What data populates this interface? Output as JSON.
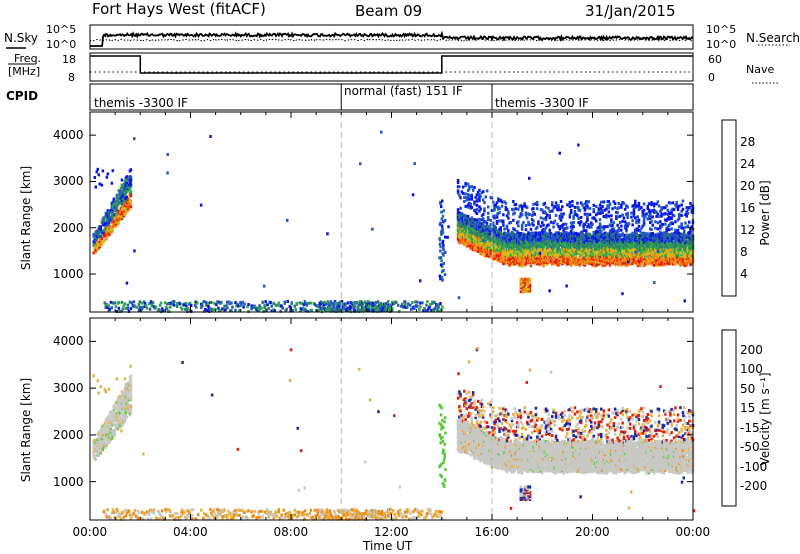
{
  "header": {
    "station": "Fort Hays West (fitACF)",
    "beam": "Beam 09",
    "date": "31/Jan/2015"
  },
  "noise_panel": {
    "left_label": "N.Sky",
    "right_label": "N.Search",
    "scale_top_left": "10^5",
    "scale_bottom_left": "10^0",
    "scale_top_right": "10^5",
    "scale_bottom_right": "10^0"
  },
  "freq_panel": {
    "label_line1": "Freq.",
    "label_line2": "[MHz]",
    "right_label": "Nave",
    "left_ticks": [
      "18",
      "8"
    ],
    "right_ticks": [
      "60",
      "0"
    ],
    "freq_segments": [
      {
        "t0": 0.0,
        "t1": 2.0,
        "level": "high"
      },
      {
        "t0": 2.0,
        "t1": 14.0,
        "level": "low"
      },
      {
        "t0": 14.0,
        "t1": 24.0,
        "level": "high"
      }
    ]
  },
  "cpid": {
    "label": "CPID",
    "segments": [
      {
        "t0": 0.0,
        "t1": 10.0,
        "text": "themis -3300 IF"
      },
      {
        "t0": 10.0,
        "t1": 16.0,
        "text": "normal (fast) 151 IF"
      },
      {
        "t0": 16.0,
        "t1": 24.0,
        "text": "themis -3300 IF"
      }
    ]
  },
  "chart_data": [
    {
      "type": "heatmap",
      "name": "power",
      "ylabel": "Slant Range [km]",
      "xlim": [
        0,
        24
      ],
      "ylim": [
        180,
        4500
      ],
      "yticks": [
        "1000",
        "2000",
        "3000",
        "4000"
      ],
      "colorbar": {
        "label": "Power [dB]",
        "tick_labels": [
          "4",
          "8",
          "12",
          "16",
          "20",
          "24",
          "28"
        ],
        "colors": [
          "#0a14e6",
          "#2155c8",
          "#2f7a72",
          "#2ea84a",
          "#c9c21a",
          "#f0a018",
          "#f46a12",
          "#e11d12"
        ]
      },
      "features": [
        {
          "t0": 0.1,
          "t1": 1.6,
          "r_base": 1450,
          "r_top": 2050,
          "slope": 900,
          "band": "strong"
        },
        {
          "t0": 14.6,
          "t1": 24.0,
          "r_base": 1300,
          "r_top": 2000,
          "band": "strong"
        },
        {
          "t0": 14.6,
          "t1": 24.0,
          "r_base": 2000,
          "r_top": 2700,
          "band": "weak"
        },
        {
          "t0": 0.5,
          "t1": 14.0,
          "r_base": 200,
          "r_top": 450,
          "band": "ground"
        },
        {
          "t0": 17.1,
          "t1": 17.5,
          "r_base": 650,
          "r_top": 900,
          "band": "strong"
        }
      ]
    },
    {
      "type": "heatmap",
      "name": "velocity",
      "xlabel": "Time UT",
      "ylabel": "Slant Range [km]",
      "xlim": [
        0,
        24
      ],
      "ylim": [
        180,
        4500
      ],
      "xticks": [
        "00:00",
        "04:00",
        "08:00",
        "12:00",
        "16:00",
        "20:00",
        "00:00"
      ],
      "yticks": [
        "1000",
        "2000",
        "3000",
        "4000"
      ],
      "colorbar": {
        "label": "Velocity [m s⁻¹]",
        "tick_labels": [
          "200",
          "100",
          "50",
          "15",
          "-15",
          "-50",
          "-100",
          "-200"
        ],
        "colors": [
          "#1a2aa6",
          "#2a66c8",
          "#2f8a5a",
          "#5ec83c",
          "#c8c8c4",
          "#e8b040",
          "#f08a10",
          "#f05a10",
          "#e02010"
        ]
      },
      "features": [
        {
          "t0": 0.1,
          "t1": 1.6,
          "r_base": 1450,
          "r_top": 2050,
          "band": "grey"
        },
        {
          "t0": 14.6,
          "t1": 24.0,
          "r_base": 1300,
          "r_top": 2400,
          "band": "grey"
        },
        {
          "t0": 0.5,
          "t1": 14.0,
          "r_base": 200,
          "r_top": 420,
          "band": "orange"
        },
        {
          "t0": 13.8,
          "t1": 14.2,
          "r_base": 1200,
          "r_top": 2600,
          "band": "green"
        }
      ]
    }
  ]
}
